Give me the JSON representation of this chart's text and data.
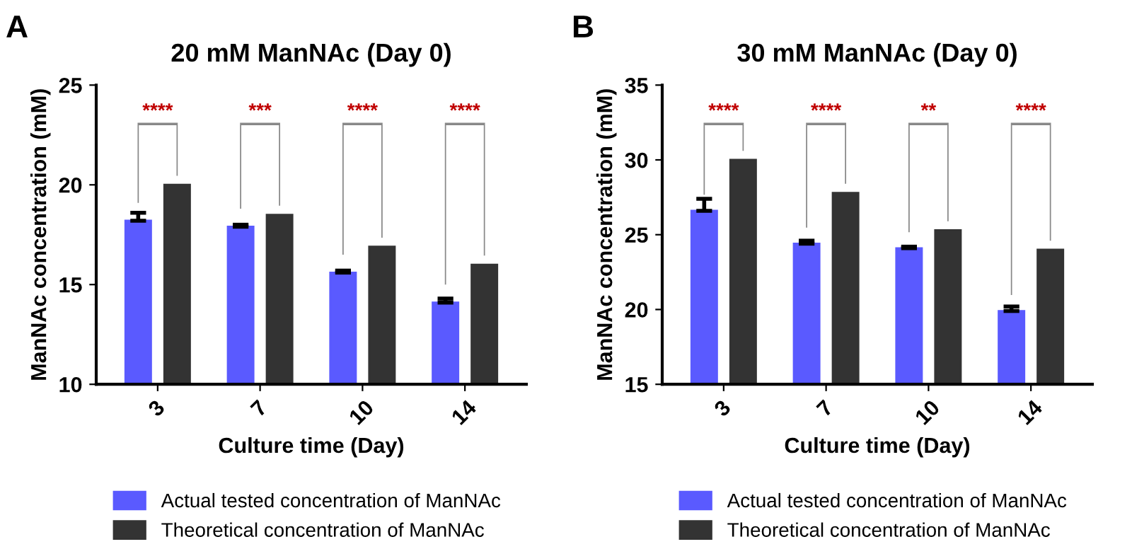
{
  "chart_data": [
    {
      "type": "bar",
      "title": "20 mM ManNAc (Day 0)",
      "xlabel": "Culture time (Day)",
      "ylabel": "ManNAc concentration (mM)",
      "categories": [
        "3",
        "7",
        "10",
        "14"
      ],
      "series": [
        {
          "name": "Actual tested concentration of ManNAc",
          "color": "#5a5aff",
          "values": [
            18.2,
            17.9,
            15.6,
            14.1
          ],
          "errors": [
            [
              18.2,
              18.6
            ],
            [
              17.9,
              18.0
            ],
            [
              15.6,
              15.7
            ],
            [
              14.1,
              14.3
            ]
          ]
        },
        {
          "name": "Theoretical concentration of ManNAc",
          "color": "#333333",
          "values": [
            20.0,
            18.5,
            16.9,
            16.0
          ]
        }
      ],
      "ylim": [
        10,
        25
      ],
      "yticks": [
        10,
        15,
        20,
        25
      ],
      "grid": false,
      "legend": "bottom",
      "annotations": [
        "A",
        "****",
        "***",
        "****",
        "****"
      ]
    },
    {
      "type": "bar",
      "title": "30 mM ManNAc (Day 0)",
      "xlabel": "Culture time (Day)",
      "ylabel": "ManNAc concentration (mM)",
      "categories": [
        "3",
        "7",
        "10",
        "14"
      ],
      "series": [
        {
          "name": "Actual tested concentration of ManNAc",
          "color": "#5a5aff",
          "values": [
            26.6,
            24.4,
            24.1,
            19.9
          ],
          "errors": [
            [
              26.6,
              27.4
            ],
            [
              24.4,
              24.6
            ],
            [
              24.1,
              24.2
            ],
            [
              19.9,
              20.2
            ]
          ]
        },
        {
          "name": "Theoretical concentration of ManNAc",
          "color": "#333333",
          "values": [
            30.0,
            27.8,
            25.3,
            24.0
          ]
        }
      ],
      "ylim": [
        15,
        35
      ],
      "yticks": [
        15,
        20,
        25,
        30,
        35
      ],
      "grid": false,
      "legend": "bottom",
      "annotations": [
        "B",
        "****",
        "****",
        "**",
        "****"
      ]
    }
  ]
}
